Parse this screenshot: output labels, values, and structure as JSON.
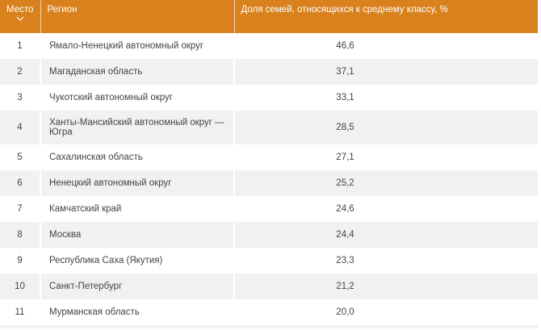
{
  "table": {
    "headers": {
      "place": "Место",
      "region": "Регион",
      "share": "Доля семей, относящихся к среднему классу, %"
    },
    "rows": [
      {
        "place": "1",
        "region": "Ямало-Ненецкий автономный округ",
        "share": "46,6"
      },
      {
        "place": "2",
        "region": "Магаданская область",
        "share": "37,1"
      },
      {
        "place": "3",
        "region": "Чукотский автономный округ",
        "share": "33,1"
      },
      {
        "place": "4",
        "region": "Ханты-Мансийский автономный округ — Югра",
        "share": "28,5"
      },
      {
        "place": "5",
        "region": "Сахалинская область",
        "share": "27,1"
      },
      {
        "place": "6",
        "region": "Ненецкий автономный округ",
        "share": "25,2"
      },
      {
        "place": "7",
        "region": "Камчатский край",
        "share": "24,6"
      },
      {
        "place": "8",
        "region": "Москва",
        "share": "24,4"
      },
      {
        "place": "9",
        "region": "Республика Саха (Якутия)",
        "share": "23,3"
      },
      {
        "place": "10",
        "region": "Санкт-Петербург",
        "share": "21,2"
      },
      {
        "place": "11",
        "region": "Мурманская область",
        "share": "20,0"
      }
    ]
  },
  "colors": {
    "header_bg": "#d9811c",
    "row_alt": "#f1f1f1"
  },
  "icons": {
    "sort": "chevron-down-icon"
  }
}
